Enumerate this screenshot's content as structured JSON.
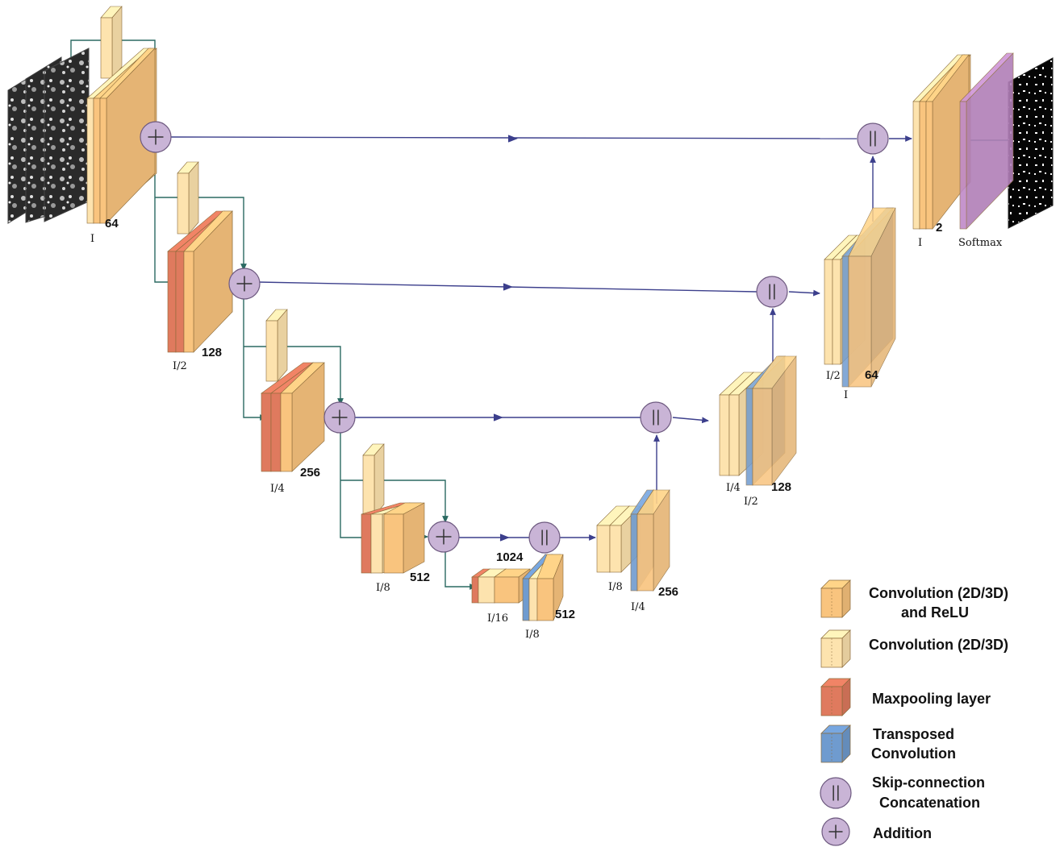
{
  "encoder": {
    "l1": {
      "channels": "64",
      "res": "I"
    },
    "l2": {
      "channels": "128",
      "res": "I/2"
    },
    "l3": {
      "channels": "256",
      "res": "I/4"
    },
    "l4": {
      "channels": "512",
      "res": "I/8"
    }
  },
  "bottleneck": {
    "channels_top": "1024",
    "res_left": "I/16",
    "res_right": "I/8",
    "channels_right": "512"
  },
  "decoder": {
    "d4": {
      "channels": "256",
      "res_top": "I/8",
      "res_bottom": "I/4"
    },
    "d3": {
      "channels": "128",
      "res_top": "I/4",
      "res_bottom": "I/2"
    },
    "d2": {
      "channels": "64",
      "res_top": "I/2",
      "res_bottom": "I"
    },
    "d1": {
      "channels": "2",
      "res": "I"
    }
  },
  "softmax_label": "Softmax",
  "legend": {
    "conv_relu_1": "Convolution (2D/3D)",
    "conv_relu_2": "and ReLU",
    "conv": "Convolution (2D/3D)",
    "maxpool": "Maxpooling layer",
    "transposed_1": "Transposed",
    "transposed_2": "Convolution",
    "skip_1": "Skip-connection",
    "skip_2": "Concatenation",
    "addition": "Addition"
  },
  "colors": {
    "conv_relu": "#f9c47e",
    "conv": "#fde3ae",
    "maxpool": "#df7a5e",
    "transposed": "#6f9bcf",
    "softmax": "#c08ac8",
    "operator": "#c9b4d6",
    "arrow_blue": "#3c3f8c",
    "arrow_green": "#2b6a62"
  }
}
